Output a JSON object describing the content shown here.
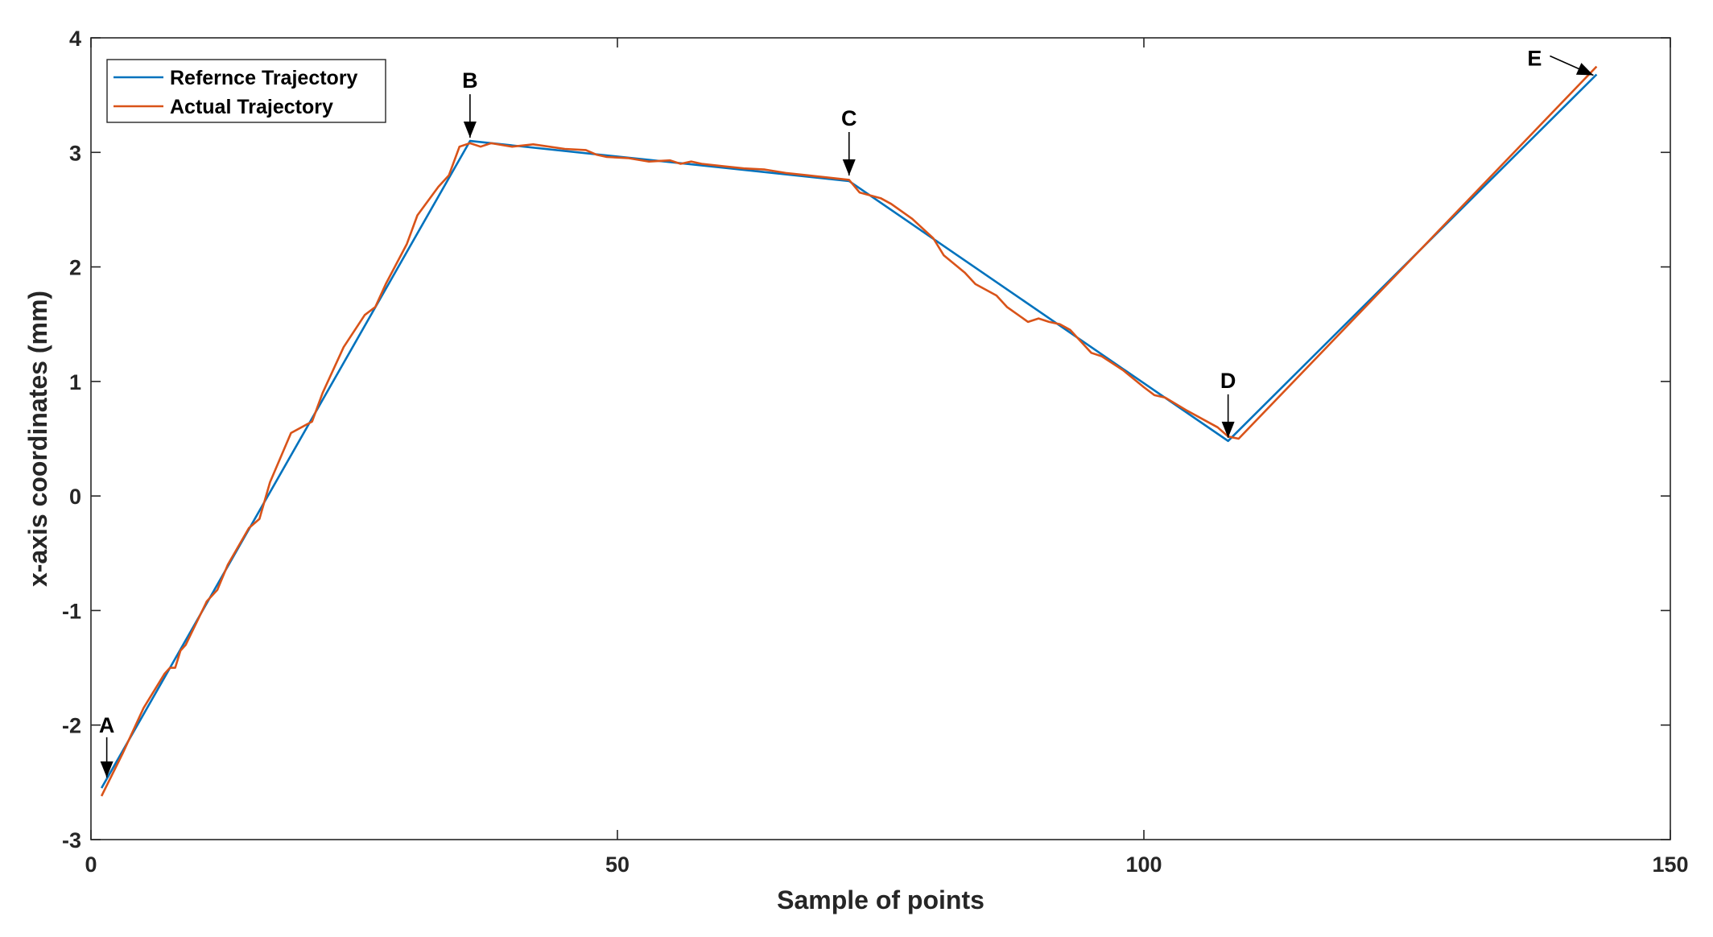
{
  "chart_data": {
    "type": "line",
    "title": "",
    "xlabel": "Sample of points",
    "ylabel": "x-axis coordinates (mm)",
    "xlim": [
      0,
      150
    ],
    "ylim": [
      -3,
      4
    ],
    "xticks": [
      0,
      50,
      100,
      150
    ],
    "yticks": [
      -3,
      -2,
      -1,
      0,
      1,
      2,
      3,
      4
    ],
    "grid": false,
    "legend_position": "top-left",
    "series": [
      {
        "name": "Refernce Trajectory",
        "color": "#0072BD",
        "x": [
          1,
          36,
          72,
          108,
          143
        ],
        "y": [
          -2.55,
          3.1,
          2.75,
          0.48,
          3.68
        ]
      },
      {
        "name": "Actual Trajectory",
        "color": "#D95319",
        "x": [
          1,
          3,
          5,
          7,
          7.5,
          8,
          8.5,
          9,
          11,
          12,
          13,
          15,
          16,
          17,
          19,
          21,
          22,
          24,
          26,
          27,
          28,
          30,
          31,
          33,
          34,
          35,
          36,
          37,
          38,
          40,
          42,
          45,
          47,
          48,
          49,
          51,
          53,
          55,
          56,
          57,
          58,
          60,
          62,
          64,
          66,
          68,
          70,
          72,
          73,
          75,
          76,
          78,
          80,
          81,
          83,
          84,
          86,
          87,
          89,
          90,
          91,
          92,
          93,
          95,
          96,
          98,
          100,
          101,
          102,
          104,
          106,
          107,
          108,
          109,
          143
        ],
        "y": [
          -2.62,
          -2.25,
          -1.85,
          -1.55,
          -1.5,
          -1.5,
          -1.35,
          -1.3,
          -0.92,
          -0.82,
          -0.6,
          -0.28,
          -0.2,
          0.12,
          0.55,
          0.65,
          0.9,
          1.3,
          1.58,
          1.65,
          1.85,
          2.2,
          2.45,
          2.7,
          2.8,
          3.05,
          3.08,
          3.05,
          3.08,
          3.05,
          3.07,
          3.03,
          3.02,
          2.98,
          2.96,
          2.95,
          2.92,
          2.93,
          2.9,
          2.92,
          2.9,
          2.88,
          2.86,
          2.85,
          2.82,
          2.8,
          2.78,
          2.76,
          2.65,
          2.6,
          2.55,
          2.42,
          2.25,
          2.1,
          1.95,
          1.85,
          1.75,
          1.65,
          1.52,
          1.55,
          1.52,
          1.5,
          1.45,
          1.25,
          1.22,
          1.1,
          0.95,
          0.88,
          0.86,
          0.75,
          0.65,
          0.6,
          0.52,
          0.5,
          3.75
        ]
      }
    ],
    "annotations": [
      {
        "label": "A",
        "x": 1.5,
        "y": -2.5
      },
      {
        "label": "B",
        "x": 36,
        "y": 3.1
      },
      {
        "label": "C",
        "x": 72,
        "y": 2.77
      },
      {
        "label": "D",
        "x": 108,
        "y": 0.48
      },
      {
        "label": "E",
        "x": 143,
        "y": 3.68
      }
    ]
  }
}
